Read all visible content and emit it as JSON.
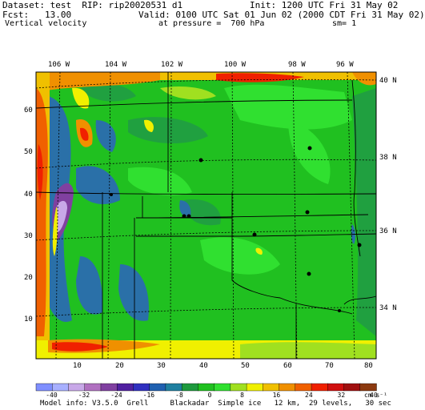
{
  "header": {
    "dataset": "Dataset: test  RIP: rip20020531 d1",
    "init": "Init: 1200 UTC Fri 31 May 02",
    "fcst": "Fcst:   13.00",
    "valid": "Valid: 0100 UTC Sat 01 Jun 02 (2000 CDT Fri 31 May 02)",
    "field": "Vertical velocity",
    "pressure": "at pressure =  700 hPa",
    "sm": "sm= 1"
  },
  "longitude_labels": [
    "106 W",
    "104 W",
    "102 W",
    "100 W",
    "98 W",
    "96 W"
  ],
  "latitude_labels": [
    "40 N",
    "38 N",
    "36 N",
    "34 N"
  ],
  "y_axis_ticks": [
    "60",
    "50",
    "40",
    "30",
    "20",
    "10"
  ],
  "x_axis_ticks": [
    "10",
    "20",
    "30",
    "40",
    "50",
    "60",
    "70",
    "80"
  ],
  "colorbar": {
    "labels": [
      "-40",
      "-32",
      "-24",
      "-16",
      "-8",
      "0",
      "8",
      "16",
      "24",
      "32",
      "40"
    ],
    "units": "cm s⁻¹",
    "colors": [
      "#7f8fff",
      "#a8b0ff",
      "#c8a8e8",
      "#b070c0",
      "#8040a0",
      "#5020a0",
      "#3030c0",
      "#2060b0",
      "#2080a0",
      "#1e9a3e",
      "#20c020",
      "#30e030",
      "#a0e020",
      "#f0f000",
      "#f0c000",
      "#f09000",
      "#f06000",
      "#f02000",
      "#d01010",
      "#a01010",
      "#8c3a10"
    ]
  },
  "model_info": "Model info: V3.5.0  Grell     Blackadar  Simple ice   12 km,  29 levels,   30 sec",
  "colors": {
    "background": "#20c020",
    "updraft_strong": "#ff3a10",
    "updraft_mid": "#f0a000",
    "updraft_weak": "#f0f000",
    "downdraft_weak": "#20a040",
    "downdraft_mid": "#2a70a8",
    "downdraft_strong": "#6030a0"
  }
}
